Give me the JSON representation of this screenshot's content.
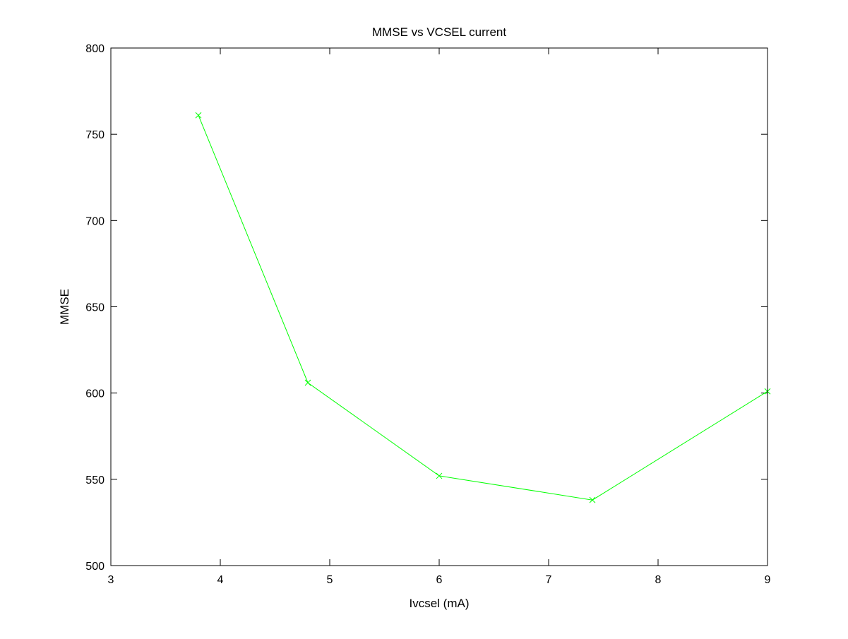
{
  "chart_data": {
    "type": "line",
    "title": "MMSE vs VCSEL current",
    "xlabel": "Ivcsel (mA)",
    "ylabel": "MMSE",
    "xlim": [
      3,
      9
    ],
    "ylim": [
      500,
      800
    ],
    "xticks": [
      3,
      4,
      5,
      6,
      7,
      8,
      9
    ],
    "yticks": [
      500,
      550,
      600,
      650,
      700,
      750,
      800
    ],
    "grid": false,
    "series": [
      {
        "x": [
          3.8,
          4.8,
          6.0,
          7.4,
          9.0
        ],
        "y": [
          761,
          606,
          552,
          538,
          601
        ],
        "color": "#00ff00",
        "marker": "x"
      }
    ]
  }
}
